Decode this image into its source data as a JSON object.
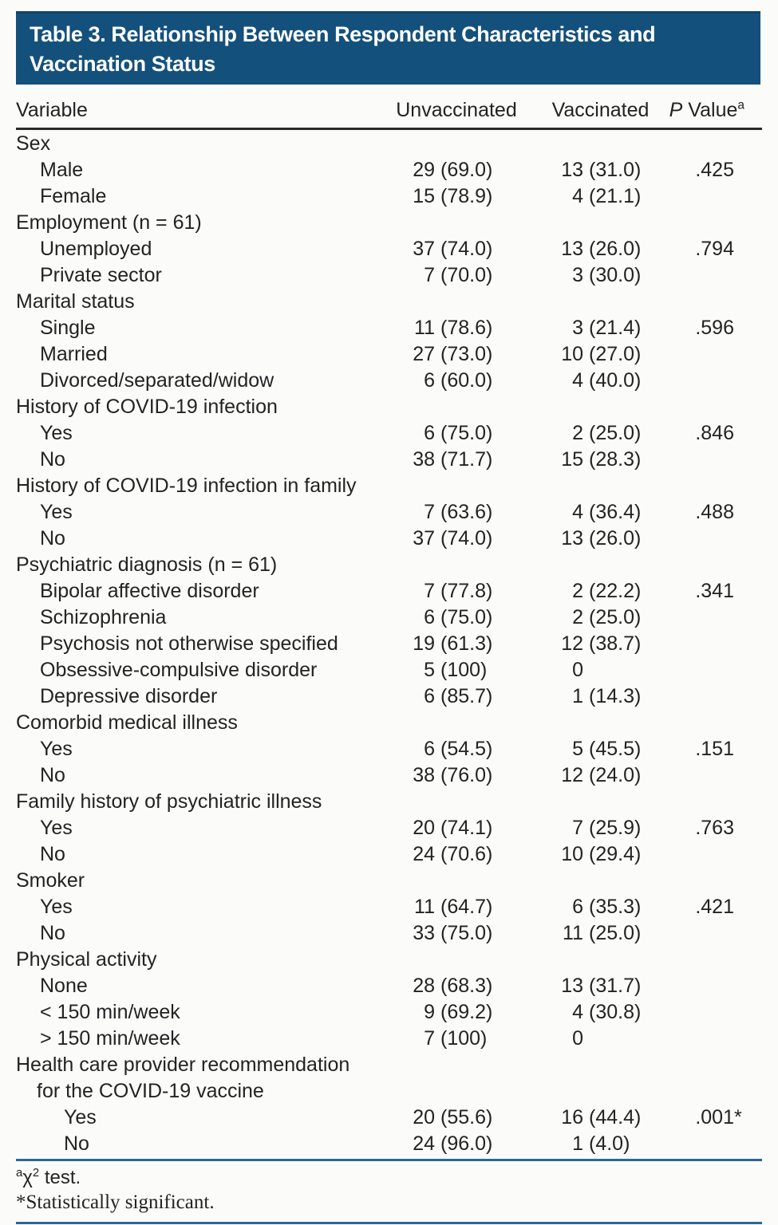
{
  "title": {
    "line1": "Table 3. Relationship Between Respondent Characteristics and",
    "line2": "Vaccination Status",
    "bg_color": "#14507C",
    "text_color": "#FFFFFF"
  },
  "table": {
    "columns": {
      "variable": "Variable",
      "unvaccinated": "Unvaccinated",
      "vaccinated": "Vaccinated",
      "p_label": "P",
      "p_rest": " Value",
      "p_sup": "a"
    },
    "rows": [
      {
        "label": "Sex",
        "indent": 0
      },
      {
        "label": "Male",
        "indent": 1,
        "u": "29",
        "up": "(69.0)",
        "v": "13",
        "vp": "(31.0)",
        "p": ".425"
      },
      {
        "label": "Female",
        "indent": 1,
        "u": "15",
        "up": "(78.9)",
        "v": "4",
        "vp": "(21.1)"
      },
      {
        "label": "Employment (n = 61)",
        "indent": 0
      },
      {
        "label": "Unemployed",
        "indent": 1,
        "u": "37",
        "up": "(74.0)",
        "v": "13",
        "vp": "(26.0)",
        "p": ".794"
      },
      {
        "label": "Private sector",
        "indent": 1,
        "u": "7",
        "up": "(70.0)",
        "v": "3",
        "vp": "(30.0)"
      },
      {
        "label": "Marital status",
        "indent": 0
      },
      {
        "label": "Single",
        "indent": 1,
        "u": "11",
        "up": "(78.6)",
        "v": "3",
        "vp": "(21.4)",
        "p": ".596"
      },
      {
        "label": "Married",
        "indent": 1,
        "u": "27",
        "up": "(73.0)",
        "v": "10",
        "vp": "(27.0)"
      },
      {
        "label": "Divorced/separated/widow",
        "indent": 1,
        "u": "6",
        "up": "(60.0)",
        "v": "4",
        "vp": "(40.0)"
      },
      {
        "label": "History of COVID-19 infection",
        "indent": 0
      },
      {
        "label": "Yes",
        "indent": 1,
        "u": "6",
        "up": "(75.0)",
        "v": "2",
        "vp": "(25.0)",
        "p": ".846"
      },
      {
        "label": "No",
        "indent": 1,
        "u": "38",
        "up": "(71.7)",
        "v": "15",
        "vp": "(28.3)"
      },
      {
        "label": "History of COVID-19 infection in family",
        "indent": 0
      },
      {
        "label": "Yes",
        "indent": 1,
        "u": "7",
        "up": "(63.6)",
        "v": "4",
        "vp": "(36.4)",
        "p": ".488"
      },
      {
        "label": "No",
        "indent": 1,
        "u": "37",
        "up": "(74.0)",
        "v": "13",
        "vp": "(26.0)"
      },
      {
        "label": "Psychiatric diagnosis (n = 61)",
        "indent": 0
      },
      {
        "label": "Bipolar affective disorder",
        "indent": 1,
        "u": "7",
        "up": "(77.8)",
        "v": "2",
        "vp": "(22.2)",
        "p": ".341"
      },
      {
        "label": "Schizophrenia",
        "indent": 1,
        "u": "6",
        "up": "(75.0)",
        "v": "2",
        "vp": "(25.0)"
      },
      {
        "label": "Psychosis not otherwise specified",
        "indent": 1,
        "u": "19",
        "up": "(61.3)",
        "v": "12",
        "vp": "(38.7)"
      },
      {
        "label": "Obsessive-compulsive disorder",
        "indent": 1,
        "u": "5",
        "up": "(100)",
        "v": "0",
        "vp": ""
      },
      {
        "label": "Depressive disorder",
        "indent": 1,
        "u": "6",
        "up": "(85.7)",
        "v": "1",
        "vp": "(14.3)"
      },
      {
        "label": "Comorbid medical illness",
        "indent": 0
      },
      {
        "label": "Yes",
        "indent": 1,
        "u": "6",
        "up": "(54.5)",
        "v": "5",
        "vp": "(45.5)",
        "p": ".151"
      },
      {
        "label": "No",
        "indent": 1,
        "u": "38",
        "up": "(76.0)",
        "v": "12",
        "vp": "(24.0)"
      },
      {
        "label": "Family history of psychiatric illness",
        "indent": 0
      },
      {
        "label": "Yes",
        "indent": 1,
        "u": "20",
        "up": "(74.1)",
        "v": "7",
        "vp": "(25.9)",
        "p": ".763"
      },
      {
        "label": "No",
        "indent": 1,
        "u": "24",
        "up": "(70.6)",
        "v": "10",
        "vp": "(29.4)"
      },
      {
        "label": "Smoker",
        "indent": 0
      },
      {
        "label": "Yes",
        "indent": 1,
        "u": "11",
        "up": "(64.7)",
        "v": "6",
        "vp": "(35.3)",
        "p": ".421"
      },
      {
        "label": "No",
        "indent": 1,
        "u": "33",
        "up": "(75.0)",
        "v": "11",
        "vp": "(25.0)"
      },
      {
        "label": "Physical activity",
        "indent": 0
      },
      {
        "label": "None",
        "indent": 1,
        "u": "28",
        "up": "(68.3)",
        "v": "13",
        "vp": "(31.7)"
      },
      {
        "label": "< 150 min/week",
        "indent": 1,
        "u": "9",
        "up": "(69.2)",
        "v": "4",
        "vp": "(30.8)"
      },
      {
        "label": "> 150 min/week",
        "indent": 1,
        "u": "7",
        "up": "(100)",
        "v": "0",
        "vp": ""
      },
      {
        "label": "Health care provider recommendation",
        "indent": 0
      },
      {
        "label": "for the COVID-19 vaccine",
        "indent": 0,
        "cont": true
      },
      {
        "label": "Yes",
        "indent": 2,
        "u": "20",
        "up": "(55.6)",
        "v": "16",
        "vp": "(44.4)",
        "p": ".001",
        "star": "*"
      },
      {
        "label": "No",
        "indent": 2,
        "u": "24",
        "up": "(96.0)",
        "v": "1",
        "vp": "(4.0)"
      }
    ]
  },
  "footnotes": {
    "chi_marker": "a",
    "chi_symbol": "χ",
    "chi_exponent": "2",
    "chi_text": " test.",
    "significance": "*Statistically significant."
  },
  "colors": {
    "title_bg": "#14507C",
    "header_rule": "#2B2B2B",
    "accent_rule": "#2B6795",
    "page_bg": "#FBFCF9",
    "body_text": "#242224"
  }
}
